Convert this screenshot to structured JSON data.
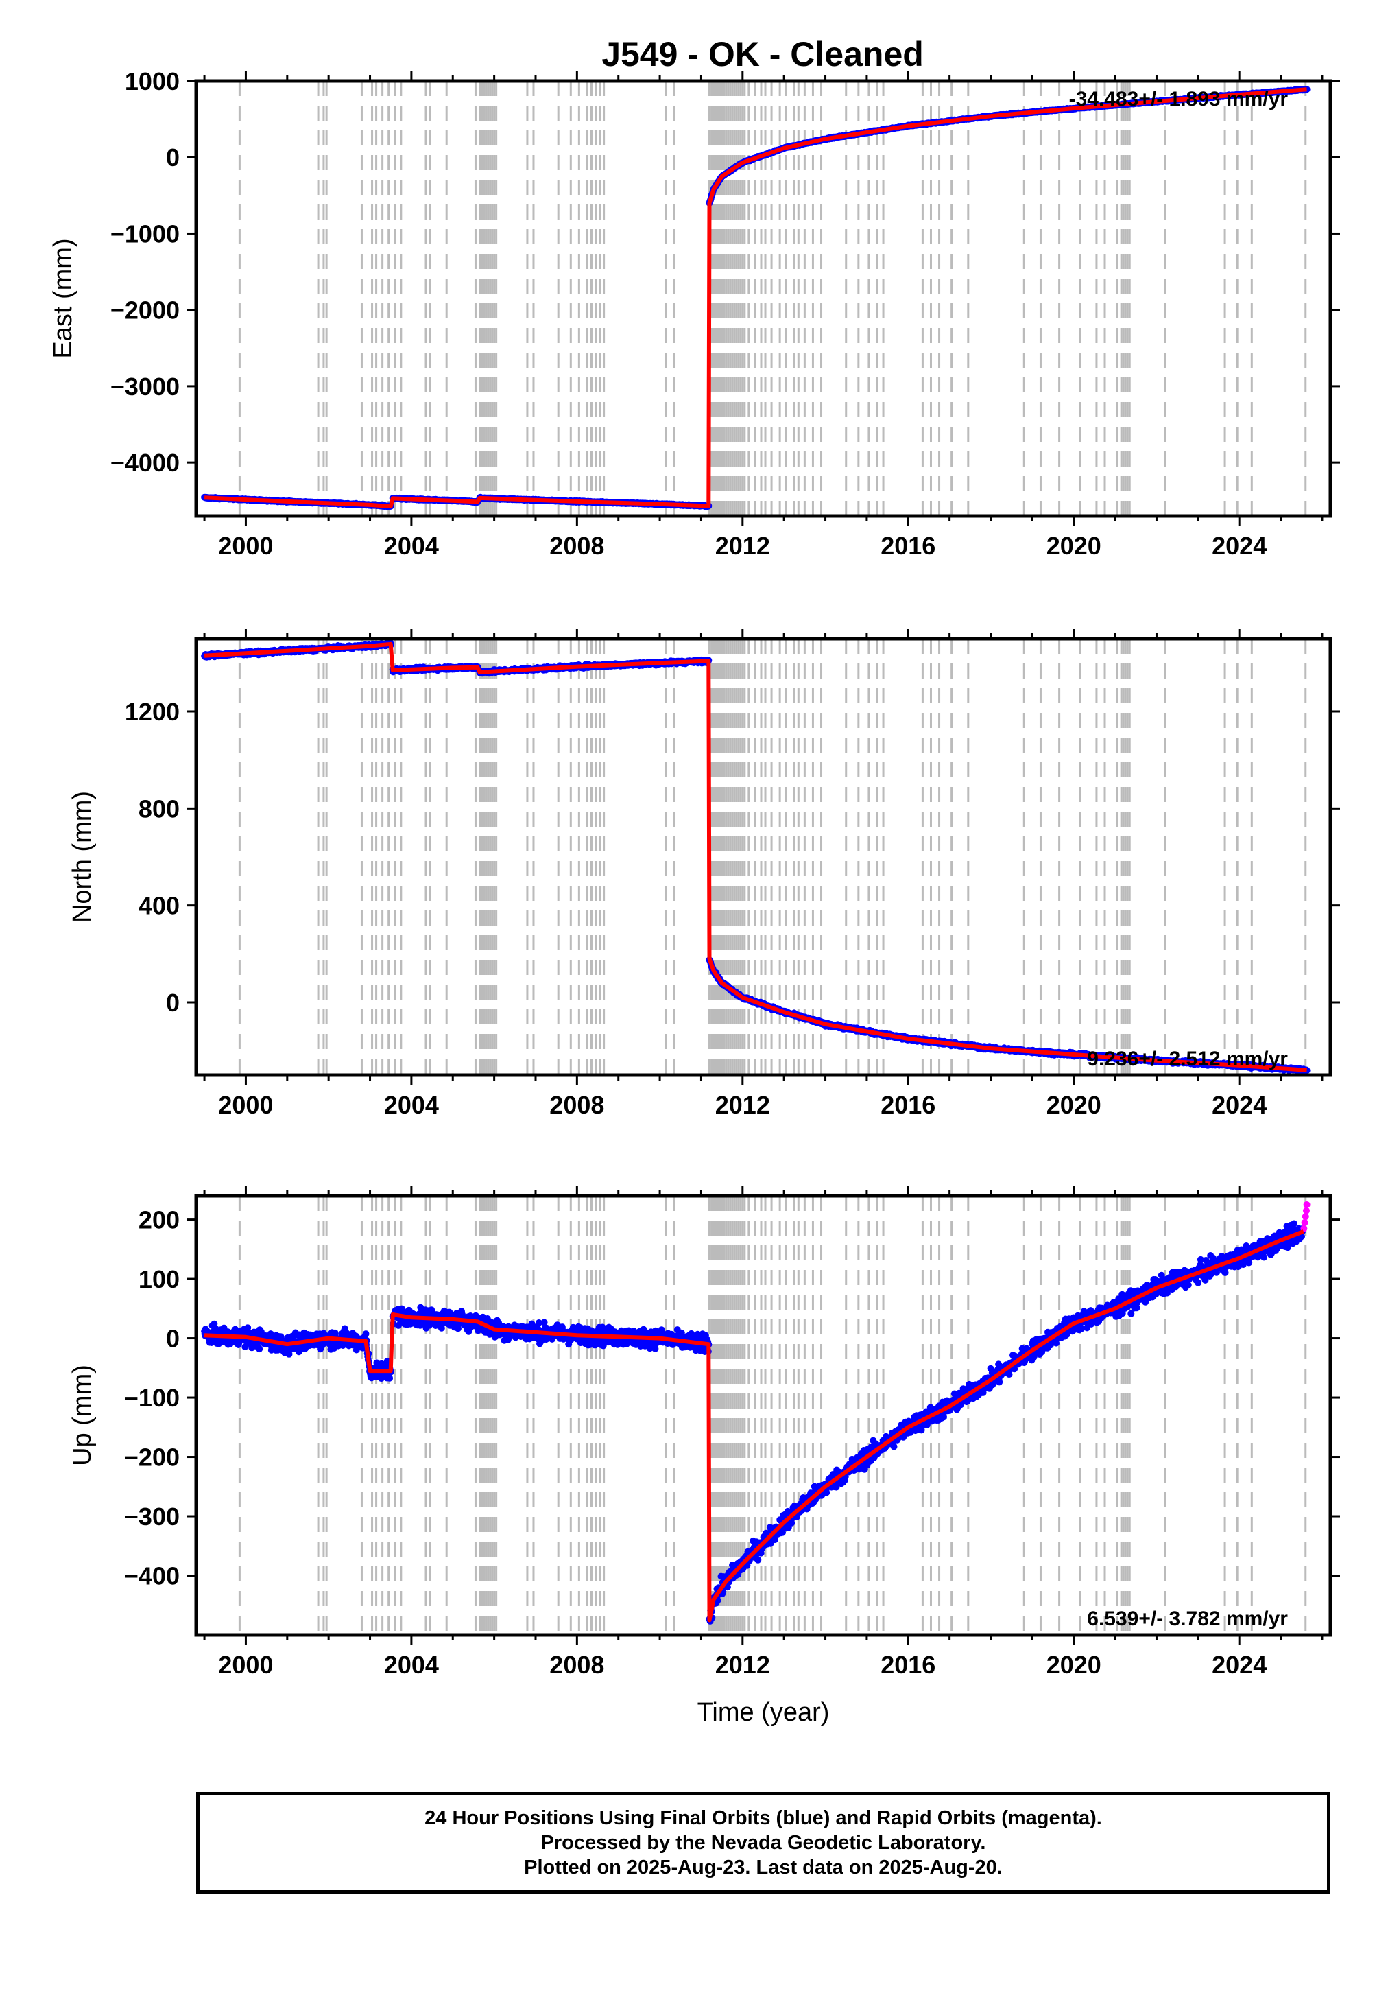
{
  "chart_data": {
    "title": "J549  - OK - Cleaned",
    "xlabel": "Time (year)",
    "xlim": [
      1998.8,
      2026.2
    ],
    "x_ticks": [
      2000,
      2004,
      2008,
      2012,
      2016,
      2020,
      2024
    ],
    "x_tick_labels": [
      "2000",
      "2004",
      "2008",
      "2012",
      "2016",
      "2020",
      "2024"
    ],
    "colors": {
      "final": "#0000ff",
      "rapid": "#ff00ff",
      "model": "#ff0000",
      "events": "#bbbbbb"
    },
    "event_years": [
      1999.85,
      2001.75,
      2001.88,
      2001.95,
      2002.8,
      2003.05,
      2003.15,
      2003.3,
      2003.45,
      2003.6,
      2003.75,
      2004.35,
      2004.45,
      2004.85,
      2005.55,
      2005.65,
      2005.7,
      2005.75,
      2005.8,
      2005.85,
      2005.9,
      2005.95,
      2006.0,
      2006.05,
      2006.8,
      2006.95,
      2007.55,
      2007.85,
      2008.05,
      2008.25,
      2008.35,
      2008.45,
      2008.55,
      2008.65,
      2010.15,
      2010.35,
      2011.2,
      2011.25,
      2011.3,
      2011.35,
      2011.4,
      2011.45,
      2011.5,
      2011.55,
      2011.6,
      2011.65,
      2011.7,
      2011.75,
      2011.8,
      2011.85,
      2011.9,
      2011.95,
      2012.0,
      2012.05,
      2012.15,
      2012.3,
      2012.45,
      2012.55,
      2012.7,
      2012.9,
      2013.05,
      2013.25,
      2013.35,
      2013.5,
      2013.7,
      2013.9,
      2014.5,
      2014.8,
      2015.05,
      2015.25,
      2015.4,
      2016.35,
      2016.55,
      2016.75,
      2017.05,
      2017.45,
      2018.8,
      2019.2,
      2019.65,
      2020.15,
      2020.55,
      2020.75,
      2021.05,
      2021.15,
      2021.2,
      2021.25,
      2021.3,
      2021.35,
      2022.2,
      2023.65,
      2023.95,
      2024.3,
      2025.6
    ],
    "panels": [
      {
        "id": "east",
        "type": "scatter",
        "ylabel": "East (mm)",
        "ylim": [
          -4700,
          1000
        ],
        "y_ticks": [
          1000,
          0,
          -1000,
          -2000,
          -3000,
          -4000
        ],
        "y_tick_labels": [
          "1000",
          "0",
          "−1000",
          "−2000",
          "−3000",
          "−4000"
        ],
        "rate_text": "-34.483+/- 1.893 mm/yr",
        "rate_position": "top-right",
        "noise": 8,
        "series": [
          {
            "x": [
              1999.0,
              2001.0,
              2003.0,
              2003.5
            ],
            "y": [
              -4460,
              -4510,
              -4555,
              -4575
            ]
          },
          {
            "x": [
              2003.55,
              2005.0,
              2005.6
            ],
            "y": [
              -4470,
              -4500,
              -4515
            ]
          },
          {
            "x": [
              2005.65,
              2008.0,
              2010.0,
              2011.18
            ],
            "y": [
              -4465,
              -4510,
              -4545,
              -4570
            ]
          },
          {
            "x": [
              2011.2,
              2011.3,
              2011.5,
              2012.0,
              2013.0,
              2014.0,
              2016.0,
              2018.0,
              2020.0,
              2022.0,
              2024.0,
              2025.63
            ],
            "y": [
              -600,
              -420,
              -250,
              -70,
              120,
              240,
              410,
              540,
              640,
              730,
              820,
              890
            ]
          }
        ]
      },
      {
        "id": "north",
        "type": "scatter",
        "ylabel": "North (mm)",
        "ylim": [
          -300,
          1500
        ],
        "y_ticks": [
          1200,
          800,
          400,
          0
        ],
        "y_tick_labels": [
          "1200",
          "800",
          "400",
          "0"
        ],
        "rate_text": "9.236+/- 2.512 mm/yr",
        "rate_position": "bottom-right",
        "noise": 6,
        "series": [
          {
            "x": [
              1999.0,
              2001.0,
              2003.0,
              2003.5
            ],
            "y": [
              1430,
              1450,
              1470,
              1478
            ]
          },
          {
            "x": [
              2003.55,
              2005.0,
              2005.6
            ],
            "y": [
              1370,
              1380,
              1382
            ]
          },
          {
            "x": [
              2005.65,
              2008.0,
              2010.0,
              2011.18
            ],
            "y": [
              1362,
              1385,
              1400,
              1408
            ]
          },
          {
            "x": [
              2011.2,
              2011.3,
              2011.5,
              2012.0,
              2013.0,
              2014.0,
              2016.0,
              2018.0,
              2020.0,
              2022.0,
              2024.0,
              2025.63
            ],
            "y": [
              180,
              130,
              80,
              20,
              -40,
              -90,
              -150,
              -190,
              -215,
              -240,
              -260,
              -280
            ]
          }
        ]
      },
      {
        "id": "up",
        "type": "scatter",
        "ylabel": "Up (mm)",
        "ylim": [
          -500,
          240
        ],
        "y_ticks": [
          200,
          100,
          0,
          -100,
          -200,
          -300,
          -400
        ],
        "y_tick_labels": [
          "200",
          "100",
          "0",
          "−100",
          "−200",
          "−300",
          "−400"
        ],
        "rate_text": "6.539+/- 3.782 mm/yr",
        "rate_position": "bottom-right",
        "noise": 14,
        "series": [
          {
            "x": [
              1999.0,
              2000.0,
              2001.0,
              2002.0,
              2002.9,
              2003.0,
              2003.5
            ],
            "y": [
              5,
              2,
              -10,
              0,
              -5,
              -55,
              -55
            ]
          },
          {
            "x": [
              2003.55,
              2004.0,
              2005.0,
              2005.6,
              2006.0
            ],
            "y": [
              40,
              35,
              32,
              28,
              15
            ]
          },
          {
            "x": [
              2006.0,
              2008.0,
              2010.0,
              2011.18
            ],
            "y": [
              15,
              5,
              0,
              -10
            ]
          },
          {
            "x": [
              2011.2,
              2011.3,
              2011.6,
              2012.0,
              2013.0,
              2014.0,
              2015.0,
              2016.0,
              2017.0,
              2018.0,
              2019.0,
              2020.0,
              2021.0,
              2022.0,
              2023.0,
              2024.0,
              2025.0,
              2025.55
            ],
            "y": [
              -475,
              -440,
              -410,
              -380,
              -310,
              -250,
              -200,
              -150,
              -115,
              -70,
              -20,
              25,
              50,
              85,
              110,
              135,
              165,
              180
            ]
          }
        ],
        "rapid_series": {
          "x": [
            2025.56,
            2025.58,
            2025.6,
            2025.62,
            2025.63
          ],
          "y": [
            185,
            195,
            205,
            215,
            225
          ]
        }
      }
    ]
  },
  "footer": {
    "line1": "24 Hour Positions Using Final Orbits (blue) and Rapid Orbits (magenta).",
    "line2": "Processed by the Nevada Geodetic Laboratory.",
    "line3": "Plotted on 2025-Aug-23. Last data on 2025-Aug-20."
  }
}
